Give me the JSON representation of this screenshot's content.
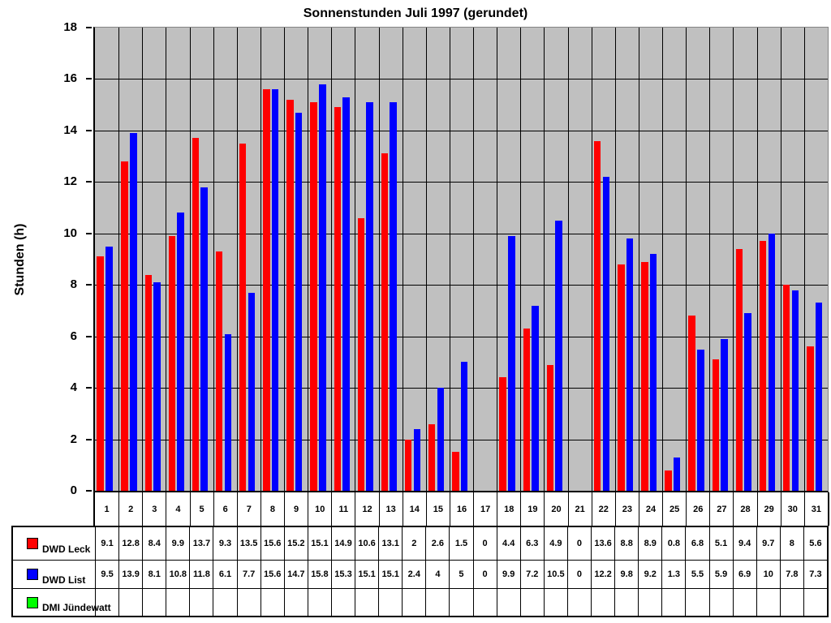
{
  "chart_data": {
    "type": "bar",
    "title": "Sonnenstunden Juli 1997 (gerundet)",
    "ylabel": "Stunden (h)",
    "xlabel": "",
    "ylim": [
      0,
      18
    ],
    "ytick_step": 2,
    "grid": true,
    "plot_background": "#c0c0c0",
    "gridline_color": "#000000",
    "legend_position": "table-left",
    "categories": [
      1,
      2,
      3,
      4,
      5,
      6,
      7,
      8,
      9,
      10,
      11,
      12,
      13,
      14,
      15,
      16,
      17,
      18,
      19,
      20,
      21,
      22,
      23,
      24,
      25,
      26,
      27,
      28,
      29,
      30,
      31
    ],
    "series": [
      {
        "name": "DWD Leck",
        "color": "#ff0000",
        "values": [
          9.1,
          12.8,
          8.4,
          9.9,
          13.7,
          9.3,
          13.5,
          15.6,
          15.2,
          15.1,
          14.9,
          10.6,
          13.1,
          2,
          2.6,
          1.5,
          0,
          4.4,
          6.3,
          4.9,
          0,
          13.6,
          8.8,
          8.9,
          0.8,
          6.8,
          5.1,
          9.4,
          9.7,
          8,
          5.6
        ]
      },
      {
        "name": "DWD List",
        "color": "#0000ff",
        "values": [
          9.5,
          13.9,
          8.1,
          10.8,
          11.8,
          6.1,
          7.7,
          15.6,
          14.7,
          15.8,
          15.3,
          15.1,
          15.1,
          2.4,
          4,
          5,
          0,
          9.9,
          7.2,
          10.5,
          0,
          12.2,
          9.8,
          9.2,
          1.3,
          5.5,
          5.9,
          6.9,
          10,
          7.8,
          7.3
        ]
      },
      {
        "name": "DMI Jündewatt",
        "color": "#00ff00",
        "values": [
          null,
          null,
          null,
          null,
          null,
          null,
          null,
          null,
          null,
          null,
          null,
          null,
          null,
          null,
          null,
          null,
          null,
          null,
          null,
          null,
          null,
          null,
          null,
          null,
          null,
          null,
          null,
          null,
          null,
          null,
          null
        ]
      }
    ]
  }
}
